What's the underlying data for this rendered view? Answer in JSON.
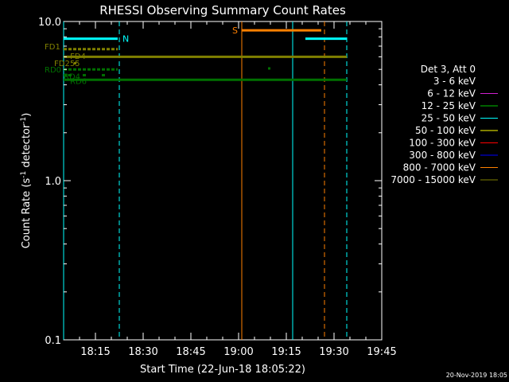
{
  "chart_data": {
    "type": "line",
    "title": "RHESSI Observing Summary Count Rates",
    "xlabel": "Start Time (22-Jun-18 18:05:22)",
    "ylabel": "Count Rate (s⁻¹ detector⁻¹)",
    "ylabel_main": "Count Rate (s",
    "ylabel_sup1": "-1",
    "ylabel_mid": " detector",
    "ylabel_sup2": "-1",
    "ylabel_end": ")",
    "y_scale": "log",
    "ylim": [
      0.1,
      10.0
    ],
    "xlim_min": [
      0,
      100
    ],
    "x_ticks_min": [
      10,
      25,
      40,
      55,
      70,
      85,
      100
    ],
    "x_tick_labels": [
      "18:15",
      "18:30",
      "18:45",
      "19:00",
      "19:15",
      "19:30",
      "19:45"
    ],
    "y_ticks": [
      0.1,
      1.0,
      10.0
    ],
    "y_tick_labels": [
      "0.1",
      "1.0",
      "10.0"
    ],
    "legend": {
      "placement": "right",
      "title": "Det 3, Att 0",
      "entries": [
        {
          "label": "3 - 6 keV",
          "color": "#000000"
        },
        {
          "label": "6 - 12 keV",
          "color": "#d020d0"
        },
        {
          "label": "12 - 25 keV",
          "color": "#00c000"
        },
        {
          "label": "25 - 50 keV",
          "color": "#00ffff"
        },
        {
          "label": "50 - 100 keV",
          "color": "#ffff00"
        },
        {
          "label": "100 - 300 keV",
          "color": "#ff0000"
        },
        {
          "label": "300 - 800 keV",
          "color": "#0000ff"
        },
        {
          "label": "800 - 7000 keV",
          "color": "#ff8000"
        },
        {
          "label": "7000 - 15000 keV",
          "color": "#808000"
        }
      ]
    },
    "flag_lines": [
      {
        "label": "N",
        "color": "#00ffff",
        "segments": [
          [
            0,
            17
          ],
          [
            76,
            89
          ]
        ],
        "y": 7.8
      },
      {
        "label": "S",
        "color": "#ff8000",
        "segments": [
          [
            56,
            81
          ]
        ],
        "y": 8.8
      },
      {
        "label": "FD",
        "color": "#808000",
        "segments": [
          [
            0,
            89
          ]
        ],
        "y": 6.0
      },
      {
        "label": "RD",
        "color": "#007000",
        "segments": [
          [
            0,
            89
          ]
        ],
        "y": 4.3
      }
    ],
    "dotted_lines": [
      {
        "color": "#808000",
        "segments": [
          [
            0,
            17
          ]
        ],
        "y": 6.7
      },
      {
        "color": "#007000",
        "segments": [
          [
            0,
            17
          ]
        ],
        "y": 5.0
      },
      {
        "color": "#007000",
        "segments": [
          [
            0,
            3
          ],
          [
            6,
            7
          ],
          [
            12,
            13
          ]
        ],
        "y": 4.6
      }
    ],
    "flag_markers": [
      {
        "color": "#808000",
        "x": 3.5,
        "y": 5.5
      },
      {
        "color": "#007000",
        "x": 64.5,
        "y": 5.1
      }
    ],
    "flag_labels": [
      {
        "text": "FD1",
        "color": "#808000",
        "x": -6,
        "y": 7.0
      },
      {
        "text": "FD4",
        "color": "#808000",
        "x": 2,
        "y": 6.1
      },
      {
        "text": "FD255",
        "color": "#808000",
        "x": -3,
        "y": 5.5
      },
      {
        "text": "RD0",
        "color": "#007000",
        "x": -6,
        "y": 5.0
      },
      {
        "text": "RD4",
        "color": "#007000",
        "x": 0,
        "y": 4.55
      },
      {
        "text": "RD6",
        "color": "#007000",
        "x": 2,
        "y": 4.25
      }
    ],
    "vertical_lines": [
      {
        "x": 0,
        "color": "#00ffff",
        "style": "solid"
      },
      {
        "x": 17.5,
        "color": "#00ffff",
        "style": "dashed"
      },
      {
        "x": 56,
        "color": "#ff8000",
        "style": "solid"
      },
      {
        "x": 72,
        "color": "#00ffff",
        "style": "solid"
      },
      {
        "x": 82,
        "color": "#ff8000",
        "style": "dashed"
      },
      {
        "x": 89,
        "color": "#00ffff",
        "style": "dashed"
      }
    ]
  },
  "footer": {
    "timestamp": "20-Nov-2019 18:05"
  }
}
